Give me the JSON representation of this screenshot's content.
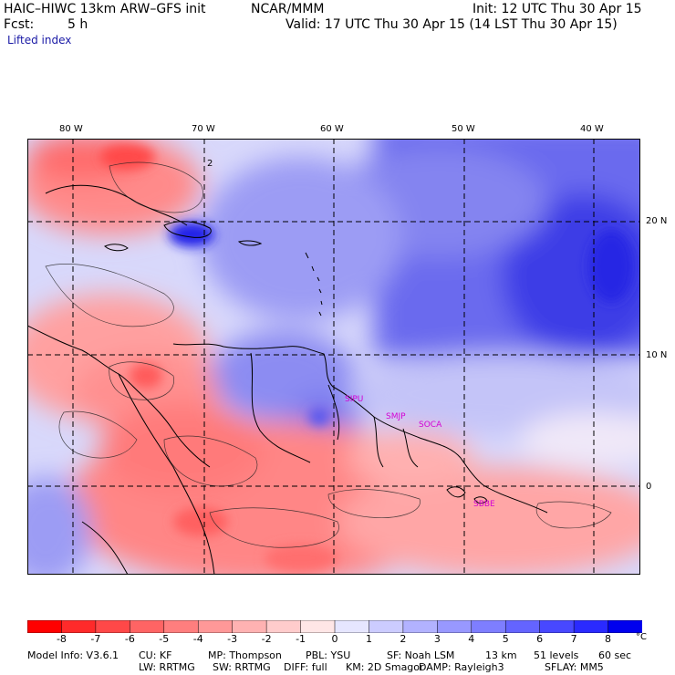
{
  "header": {
    "model": "HAIC–HIWC 13km ARW–GFS init",
    "org": "NCAR/MMM",
    "init": "Init: 12 UTC Thu 30 Apr 15",
    "fcst_label": "Fcst:",
    "fcst_value": "5 h",
    "valid": "Valid: 17 UTC Thu 30 Apr 15 (14 LST Thu 30 Apr 15)",
    "field": "Lifted index"
  },
  "map": {
    "lon_labels": [
      "80 W",
      "70 W",
      "60 W",
      "50 W",
      "40 W"
    ],
    "lat_labels": [
      "20 N",
      "10 N",
      "0"
    ],
    "contour_label": "2",
    "stations": [
      "SIPU",
      "SMJP",
      "SOCA",
      "SBBE"
    ]
  },
  "colorbar": {
    "unit": "°C",
    "ticks": [
      "-8",
      "-7",
      "-6",
      "-5",
      "-4",
      "-3",
      "-2",
      "-1",
      "0",
      "1",
      "2",
      "3",
      "4",
      "5",
      "6",
      "7",
      "8"
    ],
    "colors": [
      "#ff0000",
      "#ff2a2a",
      "#ff4848",
      "#ff6464",
      "#ff7e7e",
      "#ff9898",
      "#ffb2b2",
      "#ffcccc",
      "#ffe6e6",
      "#e6e6ff",
      "#ccccff",
      "#b2b2ff",
      "#9898ff",
      "#7e7eff",
      "#6464ff",
      "#4848ff",
      "#2a2aff",
      "#0000ee"
    ]
  },
  "footer": {
    "line1": [
      "Model Info: V3.6.1",
      "CU: KF",
      "MP: Thompson",
      "PBL: YSU",
      "SF: Noah LSM",
      "13 km",
      "51 levels",
      "60 sec"
    ],
    "line2": [
      "LW: RRTMG",
      "SW: RRTMG",
      "DIFF: full",
      "KM: 2D Smagor",
      "DAMP: Rayleigh3",
      "SFLAY: MM5"
    ]
  }
}
